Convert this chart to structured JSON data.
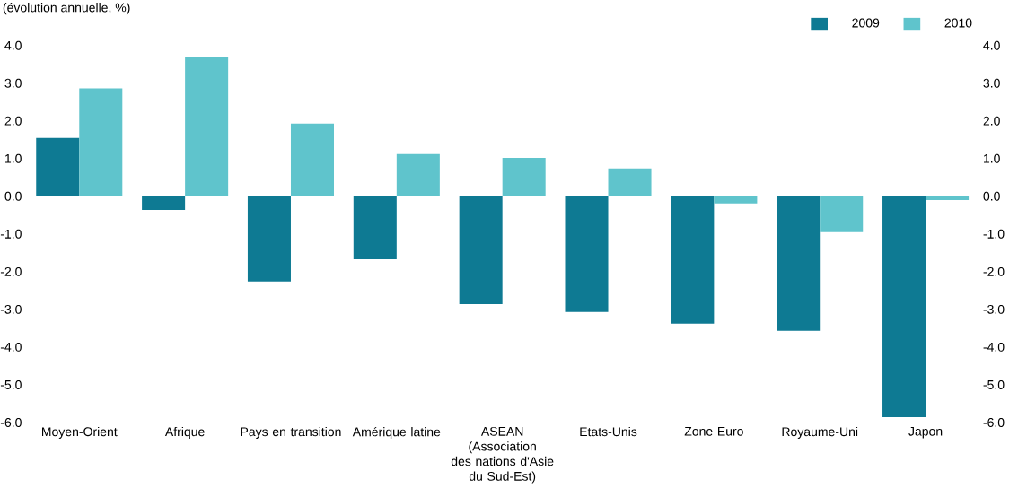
{
  "chart_data": {
    "type": "bar",
    "ylabel": "(évolution annuelle, %)",
    "categories": [
      "Moyen-Orient",
      "Afrique",
      "Pays en transition",
      "Amérique latine",
      "ASEAN (Association des nations d'Asie du Sud-Est)",
      "Etats-Unis",
      "Zone Euro",
      "Royaume-Uni",
      "Japon"
    ],
    "series": [
      {
        "name": "2009",
        "color": "#0e7a93",
        "values": [
          1.55,
          -0.36,
          -2.26,
          -1.67,
          -2.86,
          -3.07,
          -3.38,
          -3.57,
          -5.86
        ]
      },
      {
        "name": "2010",
        "color": "#5fc4cc",
        "values": [
          2.86,
          3.71,
          1.93,
          1.12,
          1.02,
          0.74,
          -0.19,
          -0.95,
          -0.1
        ]
      }
    ],
    "ylim": [
      -6,
      4
    ],
    "yticks": [
      {
        "value": 4,
        "label": "4.0"
      },
      {
        "value": 3,
        "label": "3.0"
      },
      {
        "value": 2,
        "label": "2.0"
      },
      {
        "value": 1,
        "label": "1.0"
      },
      {
        "value": 0,
        "label": "0.0"
      },
      {
        "value": -1,
        "label": "-1.0"
      },
      {
        "value": -2,
        "label": "-2.0"
      },
      {
        "value": -3,
        "label": "-3.0"
      },
      {
        "value": -4,
        "label": "-4.0"
      },
      {
        "value": -5,
        "label": "-5.0"
      },
      {
        "value": -6,
        "label": "-6.0"
      }
    ],
    "y2lim": [
      -6,
      4
    ],
    "y2ticks": [
      {
        "value": 4,
        "label": "4.0"
      },
      {
        "value": 3,
        "label": "3.0"
      },
      {
        "value": 2,
        "label": "2.0"
      },
      {
        "value": 1,
        "label": "1.0"
      },
      {
        "value": 0,
        "label": "0.0"
      },
      {
        "value": -1,
        "label": "-1.0"
      },
      {
        "value": -2,
        "label": "-2.0"
      },
      {
        "value": -3,
        "label": "-3.0"
      },
      {
        "value": -4,
        "label": "-4.0"
      },
      {
        "value": -5,
        "label": "-5.0"
      },
      {
        "value": -6,
        "label": "-6.0"
      }
    ],
    "legend": "top right",
    "grid": false
  }
}
